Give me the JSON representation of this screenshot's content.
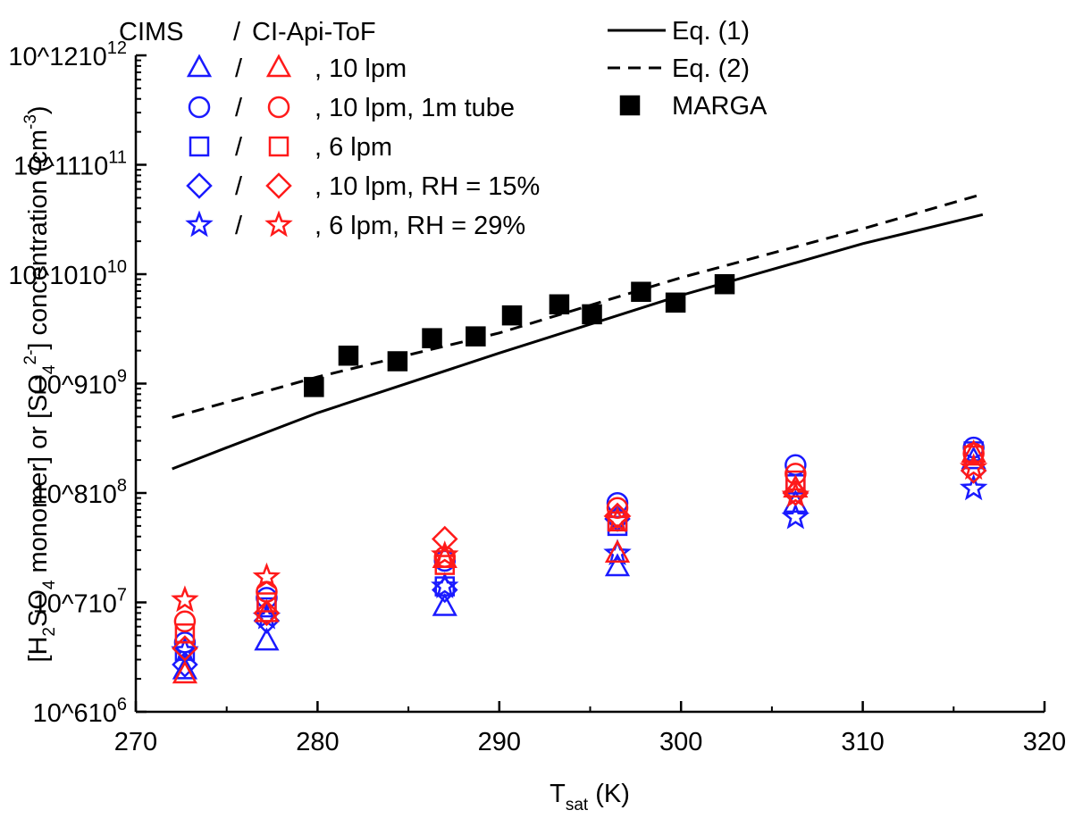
{
  "chart_data": {
    "type": "scatter",
    "log_y": true,
    "x_label": [
      {
        "text": "T"
      },
      {
        "text": "sat",
        "pos": "sub"
      },
      {
        "text": " (K)"
      }
    ],
    "y_label": [
      {
        "text": "[H"
      },
      {
        "text": "2",
        "pos": "sub"
      },
      {
        "text": "SO"
      },
      {
        "text": "4",
        "pos": "sub"
      },
      {
        "text": " monomer] or [SO"
      },
      {
        "text": "4",
        "pos": "sub"
      },
      {
        "text": "2-",
        "pos": "sup"
      },
      {
        "text": "] concentration (cm"
      },
      {
        "text": "-3",
        "pos": "sup"
      },
      {
        "text": ")"
      }
    ],
    "xlim": [
      270,
      320
    ],
    "xticks": [
      270,
      280,
      290,
      300,
      310,
      320
    ],
    "ylim": [
      1000000,
      1000000000000
    ],
    "yticks": [
      {
        "value": 1000000,
        "label": "10^6"
      },
      {
        "value": 10000000,
        "label": "10^7"
      },
      {
        "value": 100000000,
        "label": "10^8"
      },
      {
        "value": 1000000000,
        "label": "10^9"
      },
      {
        "value": 10000000000,
        "label": "10^10"
      },
      {
        "value": 100000000000,
        "label": "10^11"
      },
      {
        "value": 1000000000000,
        "label": "10^12"
      }
    ],
    "lines": [
      {
        "name": "Eq. (1)",
        "color": "#000000",
        "dashed": false,
        "x": [
          272,
          275,
          280,
          290,
          300,
          310,
          316.6
        ],
        "values": [
          166000000,
          260000000,
          540000000,
          1900000000,
          6400000000,
          19000000000,
          35000000000
        ]
      },
      {
        "name": "Eq. (2)",
        "color": "#000000",
        "dashed": true,
        "x": [
          272,
          280,
          290,
          300,
          310,
          316.6
        ],
        "values": [
          490000000,
          1150000000,
          2900000000,
          9300000000,
          26000000000,
          54000000000
        ]
      }
    ],
    "marga": {
      "name": "MARGA",
      "color": "#000000",
      "marker": "square",
      "x": [
        279.8,
        281.7,
        284.4,
        286.3,
        288.7,
        290.7,
        293.3,
        295.1,
        297.8,
        299.7,
        302.4
      ],
      "values": [
        930000000,
        1800000000,
        1600000000,
        2600000000,
        2700000000,
        4200000000,
        5300000000,
        4300000000,
        6900000000,
        5500000000,
        8100000000
      ]
    },
    "separator": "/",
    "conditions": [
      {
        "label": ", 10 lpm",
        "marker": "triangle"
      },
      {
        "label": ", 10 lpm, 1m tube",
        "marker": "circle"
      },
      {
        "label": ", 6 lpm",
        "marker": "square"
      },
      {
        "label": ", 10 lpm, RH = 15%",
        "marker": "diamond"
      },
      {
        "label": ", 6 lpm, RH = 29%",
        "marker": "star"
      }
    ],
    "instruments": [
      {
        "name": "CIMS",
        "color": "#1a1aff",
        "x": [
          272.7,
          277.2,
          287.0,
          296.5,
          306.3,
          316.1
        ],
        "series": [
          [
            2400000,
            4400000,
            9100000,
            21000000,
            80000000,
            200000000
          ],
          [
            4300000,
            11000000,
            24000000,
            81000000,
            180000000,
            260000000
          ],
          [
            3600000,
            9000000,
            14000000,
            50000000,
            120000000,
            240000000
          ],
          [
            2700000,
            6800000,
            13000000,
            58000000,
            100000000,
            160000000
          ],
          [
            3600000,
            7300000,
            14000000,
            28000000,
            60000000,
            110000000
          ]
        ]
      },
      {
        "name": "CI-Api-ToF",
        "color": "#ff1a1a",
        "x": [
          272.7,
          277.2,
          287.0,
          296.5,
          306.3,
          316.1
        ],
        "series": [
          [
            2200000,
            8000000,
            25000000,
            28000000,
            110000000,
            230000000
          ],
          [
            6700000,
            12500000,
            26000000,
            73000000,
            150000000,
            230000000
          ],
          [
            5200000,
            10000000,
            22000000,
            55000000,
            130000000,
            220000000
          ],
          [
            3800000,
            8000000,
            38000000,
            62000000,
            100000000,
            160000000
          ],
          [
            10500000,
            17000000,
            27000000,
            56000000,
            95000000,
            170000000
          ]
        ]
      }
    ]
  }
}
